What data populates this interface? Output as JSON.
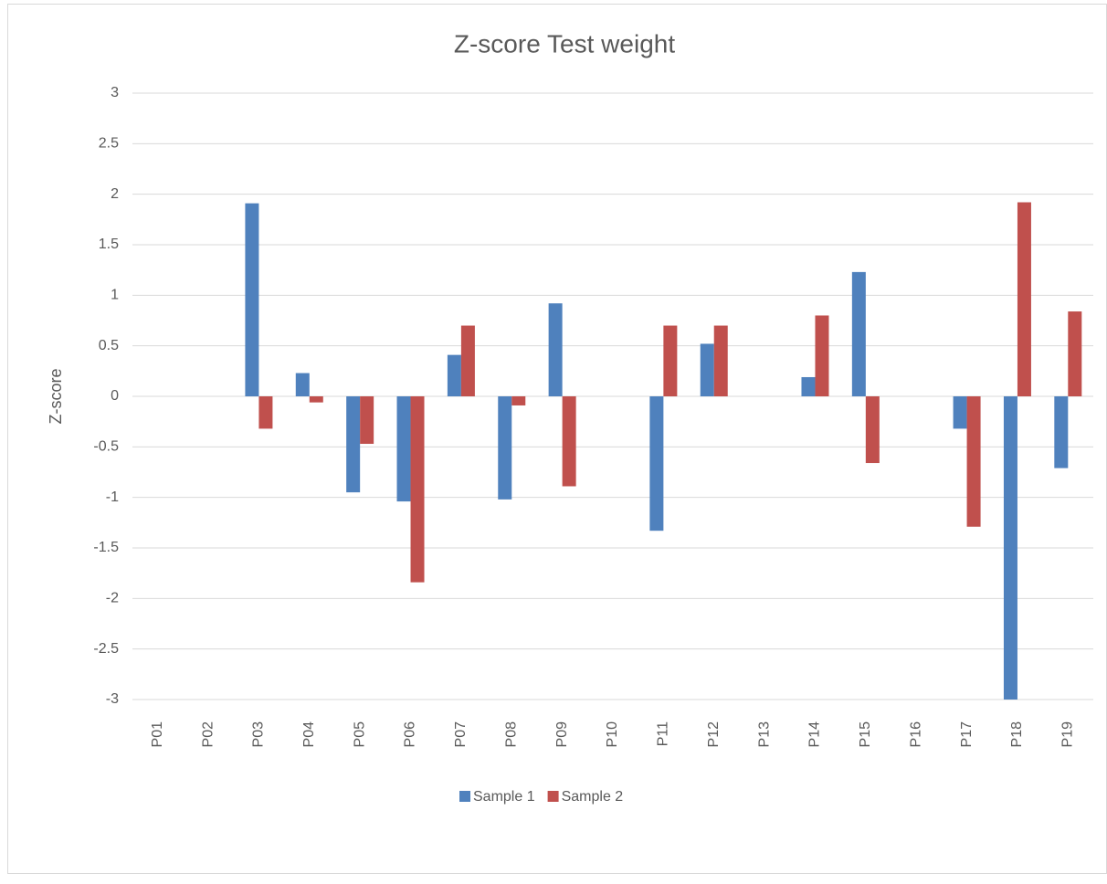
{
  "chart_data": {
    "type": "bar",
    "title": "Z-score Test weight",
    "y_label": "Z-score",
    "categories": [
      "P01",
      "P02",
      "P03",
      "P04",
      "P05",
      "P06",
      "P07",
      "P08",
      "P09",
      "P10",
      "P11",
      "P12",
      "P13",
      "P14",
      "P15",
      "P16",
      "P17",
      "P18",
      "P19"
    ],
    "series": [
      {
        "name": "Sample 1",
        "color": "#4f81bd",
        "values": [
          null,
          null,
          1.91,
          0.23,
          -0.95,
          -1.04,
          0.41,
          -1.02,
          0.92,
          null,
          -1.33,
          0.52,
          null,
          0.19,
          1.23,
          null,
          -0.32,
          -3.0,
          -0.71
        ]
      },
      {
        "name": "Sample 2",
        "color": "#c0504d",
        "values": [
          null,
          null,
          -0.32,
          -0.06,
          -0.47,
          -1.84,
          0.7,
          -0.09,
          -0.89,
          null,
          0.7,
          0.7,
          null,
          0.8,
          -0.66,
          null,
          -1.29,
          1.92,
          0.84
        ]
      }
    ],
    "ylim": [
      -3,
      3
    ],
    "yticks": [
      -3,
      -2.5,
      -2,
      -1.5,
      -1,
      -0.5,
      0,
      0.5,
      1,
      1.5,
      2,
      2.5,
      3
    ],
    "grid": true,
    "legend": "bottom"
  }
}
